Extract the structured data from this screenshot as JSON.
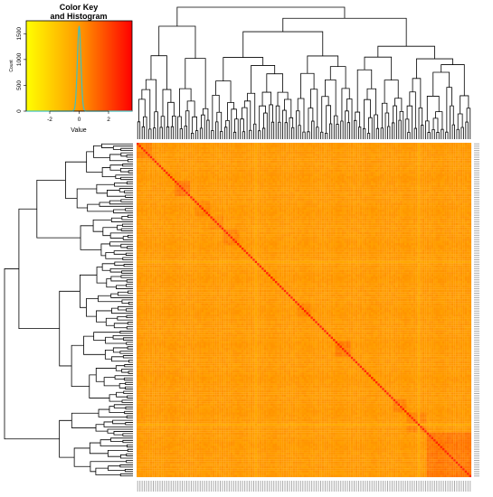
{
  "chart_data": [
    {
      "type": "histogram",
      "title": "Color Key\nand Histogram",
      "title_lines": [
        "Color Key",
        "and Histogram"
      ],
      "xlabel": "Value",
      "ylabel": "Count",
      "xlim": [
        -3.6,
        3.6
      ],
      "ylim": [
        0,
        1750
      ],
      "x_ticks": [
        -2,
        0,
        2
      ],
      "y_ticks": [
        0,
        500,
        1000,
        1500
      ],
      "color_scale": {
        "low": "#ffff00",
        "mid": "#ff9900",
        "high": "#ff0000"
      },
      "density_curve_color": "#40c0c0",
      "density_peak": {
        "x": 0,
        "count": 1650
      },
      "density_spread": 0.12
    },
    {
      "type": "heatmap",
      "n_rows": 150,
      "n_cols": 150,
      "symmetric": true,
      "diagonal_value": 3.0,
      "background_value": 0.3,
      "cell_palette": [
        "#ffff00",
        "#ffd000",
        "#ffb000",
        "#ff9000",
        "#ff6000",
        "#ff0000"
      ],
      "row_dendrogram": "left",
      "col_dendrogram": "top",
      "cluster_blocks": [
        {
          "start": 0,
          "end": 20,
          "value": 1.4
        },
        {
          "start": 20,
          "end": 29,
          "value": 1.1
        },
        {
          "start": 29,
          "end": 35,
          "value": 1.0
        },
        {
          "start": 54,
          "end": 61,
          "value": 1.2
        },
        {
          "start": 72,
          "end": 78,
          "value": 0.9
        },
        {
          "start": 104,
          "end": 111,
          "value": 1.0
        },
        {
          "start": 111,
          "end": 117,
          "value": 0.9
        },
        {
          "start": 117,
          "end": 124,
          "value": 0.8
        },
        {
          "start": 126,
          "end": 133,
          "value": 1.3
        },
        {
          "start": 143,
          "end": 150,
          "value": 1.0
        }
      ],
      "light_stripes": [
        {
          "index": 23,
          "value": -0.4
        },
        {
          "index": 96,
          "value": -0.3
        }
      ]
    }
  ]
}
